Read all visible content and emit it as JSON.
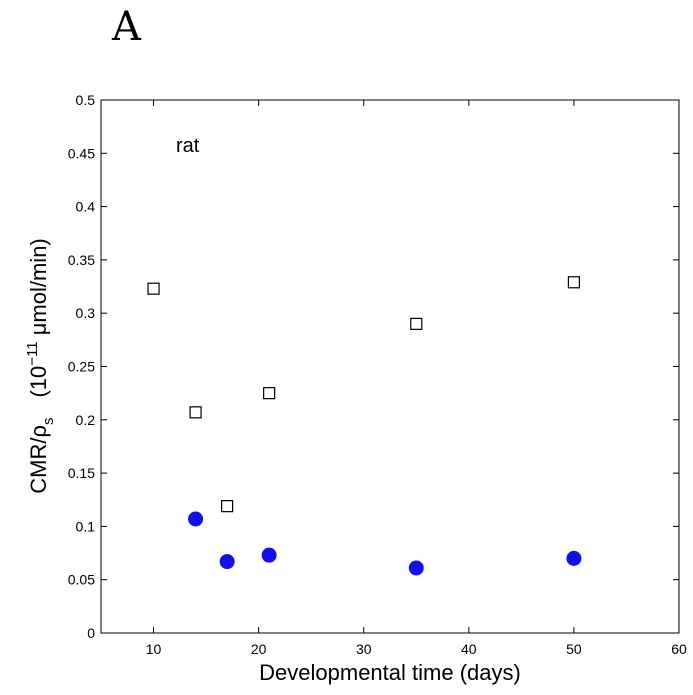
{
  "panel_label": "A",
  "chart_data": {
    "type": "scatter",
    "title": "",
    "xlabel": "Developmental  time  (days)",
    "ylabel": {
      "prefix": "CMR/ρ",
      "prefix_sub": "s",
      "unit_open": "(10",
      "unit_exp": "−11",
      "unit_close": " μmol/min)"
    },
    "annotation": "rat",
    "xlim": [
      5,
      60
    ],
    "ylim": [
      0,
      0.5
    ],
    "xticks": [
      10,
      20,
      30,
      40,
      50,
      60
    ],
    "xtick_labels": [
      "10",
      "20",
      "30",
      "40",
      "50",
      "60"
    ],
    "yticks": [
      0,
      0.05,
      0.1,
      0.15,
      0.2,
      0.25,
      0.3,
      0.35,
      0.4,
      0.45,
      0.5
    ],
    "ytick_labels": [
      "0",
      "0.05",
      "0.1",
      "0.15",
      "0.2",
      "0.25",
      "0.3",
      "0.35",
      "0.4",
      "0.45",
      "0.5"
    ],
    "grid": false,
    "series": [
      {
        "marker": "square-open",
        "color": "#000000",
        "x": [
          10,
          14,
          17,
          21,
          35,
          50
        ],
        "y": [
          0.323,
          0.207,
          0.119,
          0.225,
          0.29,
          0.329
        ]
      },
      {
        "marker": "circle-filled",
        "color": "#1010e8",
        "x": [
          14,
          17,
          21,
          35,
          50
        ],
        "y": [
          0.107,
          0.067,
          0.073,
          0.061,
          0.07
        ]
      }
    ]
  }
}
